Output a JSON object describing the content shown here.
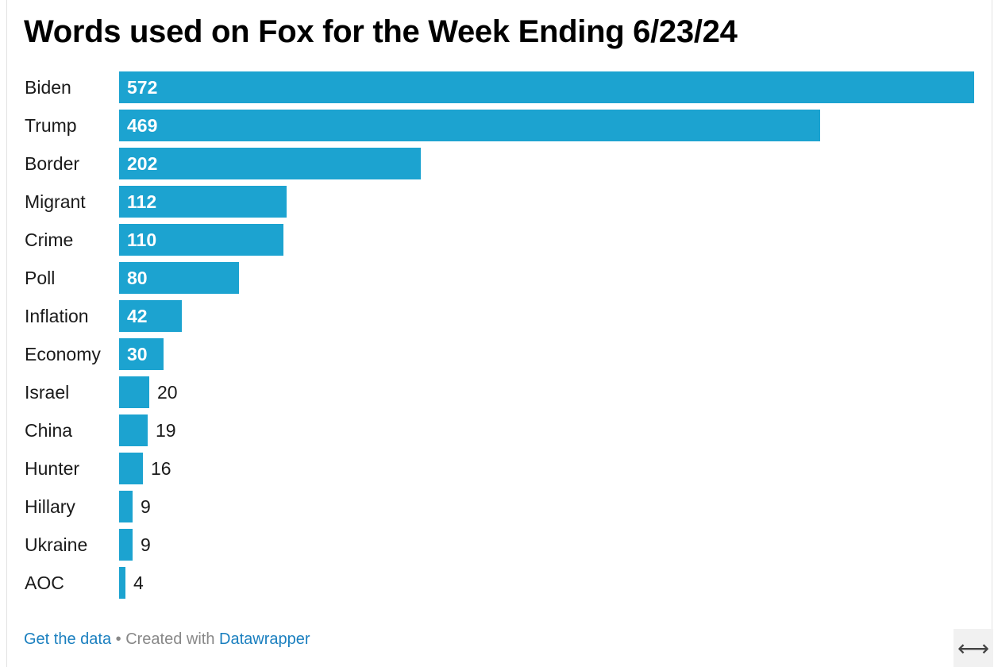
{
  "chart_data": {
    "type": "bar",
    "orientation": "horizontal",
    "title": "Words used on Fox for the Week Ending 6/23/24",
    "categories": [
      "Biden",
      "Trump",
      "Border",
      "Migrant",
      "Crime",
      "Poll",
      "Inflation",
      "Economy",
      "Israel",
      "China",
      "Hunter",
      "Hillary",
      "Ukraine",
      "AOC"
    ],
    "values": [
      572,
      469,
      202,
      112,
      110,
      80,
      42,
      30,
      20,
      19,
      16,
      9,
      9,
      4
    ],
    "xlim": [
      0,
      572
    ],
    "grid": false,
    "legend": "none",
    "bar_color": "#1ca3d0"
  },
  "footer": {
    "get_data": "Get the data",
    "separator": " • Created with ",
    "datawrapper": "Datawrapper"
  },
  "icons": {
    "resize": "horizontal-resize-icon"
  }
}
